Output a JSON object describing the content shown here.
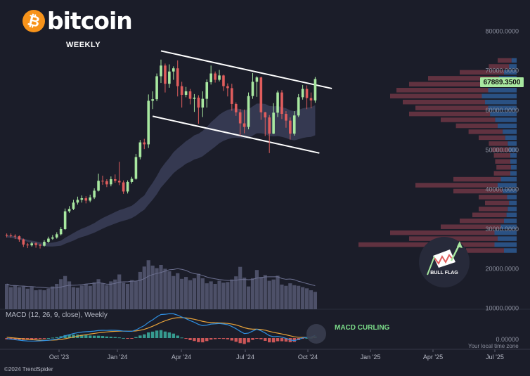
{
  "header": {
    "logo_text": "bitcoin",
    "subtitle": "WEEKLY"
  },
  "colors": {
    "background": "#1b1d29",
    "bull": "#a8e8a0",
    "bear": "#e05d5d",
    "macd_line": "#2f8fe0",
    "signal_line": "#e8a33a",
    "volume": "#5a5e78",
    "ema_band": "#3a3e58",
    "channel": "#ffffff",
    "bitcoin_orange": "#f7931a"
  },
  "icons": {
    "logo": "bitcoin-logo-icon",
    "pattern": "bull-flag-icon"
  },
  "chart_data": {
    "type": "candlestick",
    "timeframe": "weekly",
    "y_axis": {
      "labels": [
        "80000.0000",
        "70000.0000",
        "60000.0000",
        "50000.0000",
        "40000.0000",
        "30000.0000",
        "20000.0000",
        "10000.0000"
      ],
      "ylim": [
        10000,
        82000
      ]
    },
    "x_axis": {
      "labels": [
        "Oct '23",
        "Jan '24",
        "Apr '24",
        "Jul '24",
        "Oct '24",
        "Jan '25",
        "Apr '25",
        "Jul '25"
      ]
    },
    "last_price": "67889.3500",
    "candles": [
      [
        28500,
        28400,
        28900,
        27900
      ],
      [
        28400,
        28300,
        28900,
        27900
      ],
      [
        28300,
        28200,
        28700,
        27500
      ],
      [
        28200,
        27400,
        28400,
        26800
      ],
      [
        27400,
        26100,
        27600,
        25500
      ],
      [
        26100,
        25900,
        26500,
        25200
      ],
      [
        25900,
        26400,
        26800,
        25600
      ],
      [
        26400,
        26000,
        26700,
        25300
      ],
      [
        26000,
        25800,
        26300,
        25100
      ],
      [
        25800,
        26800,
        27200,
        25600
      ],
      [
        26800,
        27600,
        28100,
        26500
      ],
      [
        27600,
        27900,
        28500,
        27300
      ],
      [
        27900,
        28700,
        29200,
        27600
      ],
      [
        28700,
        30000,
        30500,
        28400
      ],
      [
        30000,
        34500,
        35200,
        29800
      ],
      [
        34500,
        35100,
        35800,
        34100
      ],
      [
        35100,
        36700,
        37400,
        34800
      ],
      [
        36700,
        37400,
        38200,
        36200
      ],
      [
        37400,
        37800,
        38500,
        36700
      ],
      [
        37800,
        37200,
        38300,
        36500
      ],
      [
        37200,
        38000,
        38700,
        36800
      ],
      [
        38000,
        39700,
        40300,
        37600
      ],
      [
        39700,
        42200,
        44000,
        39500
      ],
      [
        42200,
        42100,
        43500,
        41200
      ],
      [
        42100,
        41300,
        42600,
        40600
      ],
      [
        41300,
        42600,
        43300,
        40800
      ],
      [
        42600,
        42200,
        43800,
        41700
      ],
      [
        42200,
        41800,
        47000,
        41100
      ],
      [
        41800,
        39500,
        42300,
        38900
      ],
      [
        39500,
        41900,
        42300,
        39000
      ],
      [
        41900,
        42700,
        43200,
        41500
      ],
      [
        42700,
        48200,
        49000,
        42500
      ],
      [
        48200,
        51900,
        52500,
        47600
      ],
      [
        51900,
        51400,
        52800,
        50200
      ],
      [
        51400,
        62400,
        64000,
        50500
      ],
      [
        62400,
        62800,
        64800,
        60300
      ],
      [
        62800,
        68600,
        69300,
        62300
      ],
      [
        68600,
        71300,
        72800,
        66900
      ],
      [
        71300,
        66700,
        71800,
        64500
      ],
      [
        66700,
        69800,
        71600,
        65700
      ],
      [
        69800,
        70600,
        71100,
        67700
      ],
      [
        70600,
        66100,
        72600,
        63500
      ],
      [
        66100,
        63900,
        67200,
        60700
      ],
      [
        63900,
        64800,
        65900,
        63300
      ],
      [
        64800,
        62900,
        65400,
        61500
      ],
      [
        62900,
        63200,
        64100,
        59600
      ],
      [
        63200,
        60700,
        63800,
        56600
      ],
      [
        60700,
        62900,
        64800,
        58300
      ],
      [
        62900,
        67100,
        67800,
        60700
      ],
      [
        67100,
        69300,
        71300,
        66500
      ],
      [
        69300,
        67700,
        69800,
        67000
      ],
      [
        67700,
        68800,
        70200,
        67300
      ],
      [
        68800,
        66100,
        69000,
        64900
      ],
      [
        66100,
        65600,
        66800,
        63500
      ],
      [
        65600,
        61600,
        66700,
        59900
      ],
      [
        61600,
        59500,
        62000,
        58600
      ],
      [
        59500,
        56700,
        60300,
        53600
      ],
      [
        56700,
        55800,
        60200,
        54200
      ],
      [
        55800,
        63600,
        64500,
        55200
      ],
      [
        63600,
        67200,
        69400,
        62900
      ],
      [
        67200,
        68300,
        68600,
        63400
      ],
      [
        68300,
        59500,
        68500,
        57600
      ],
      [
        59500,
        58200,
        59600,
        53500
      ],
      [
        58200,
        54100,
        58800,
        49200
      ],
      [
        54100,
        59400,
        61800,
        54000
      ],
      [
        59400,
        64500,
        65000,
        58300
      ],
      [
        64500,
        59100,
        65100,
        57800
      ],
      [
        59100,
        57400,
        59800,
        55600
      ],
      [
        57400,
        54100,
        58200,
        52600
      ],
      [
        54100,
        58700,
        59800,
        53600
      ],
      [
        58700,
        63300,
        64100,
        58300
      ],
      [
        63300,
        65400,
        66400,
        62700
      ],
      [
        65400,
        63100,
        66300,
        60300
      ],
      [
        63100,
        62500,
        64500,
        60500
      ],
      [
        62500,
        67900,
        68400,
        61900
      ]
    ],
    "volume": [
      0.8,
      0.7,
      0.75,
      0.7,
      0.72,
      0.65,
      0.7,
      0.6,
      0.62,
      0.6,
      0.65,
      0.72,
      0.8,
      0.95,
      1.05,
      0.88,
      0.7,
      0.68,
      0.75,
      0.8,
      0.74,
      0.85,
      0.95,
      0.82,
      0.76,
      0.88,
      0.94,
      1.1,
      0.84,
      0.8,
      0.92,
      0.9,
      1.18,
      1.35,
      1.55,
      1.38,
      1.3,
      1.4,
      1.28,
      1.2,
      1.05,
      1.14,
      0.96,
      1.02,
      0.92,
      0.98,
      1.12,
      0.98,
      0.82,
      0.88,
      0.8,
      0.9,
      0.84,
      0.86,
      0.94,
      1.04,
      1.34,
      1.0,
      0.72,
      0.98,
      1.24,
      1.02,
      1.08,
      0.9,
      0.94,
      1.06,
      0.78,
      0.74,
      0.82,
      0.76,
      0.74,
      0.7,
      0.66,
      0.6,
      0.55
    ],
    "macd": [
      -100,
      -210,
      -330,
      -420,
      -520,
      -580,
      -600,
      -590,
      -560,
      -500,
      -430,
      -330,
      -200,
      80,
      440,
      670,
      890,
      1050,
      1180,
      1250,
      1300,
      1370,
      1490,
      1530,
      1520,
      1540,
      1530,
      1480,
      1380,
      1340,
      1330,
      1600,
      2050,
      2460,
      3110,
      3600,
      4180,
      4650,
      4700,
      4800,
      4790,
      4520,
      4150,
      3830,
      3450,
      3120,
      2700,
      2450,
      2550,
      2760,
      2810,
      2880,
      2780,
      2640,
      2280,
      1850,
      1330,
      880,
      980,
      1380,
      1740,
      1440,
      1000,
      480,
      260,
      340,
      180,
      -60,
      -380,
      -500,
      -260,
      30,
      150,
      180,
      550
    ],
    "signal": [
      150,
      80,
      0,
      -80,
      -160,
      -240,
      -310,
      -370,
      -410,
      -430,
      -430,
      -410,
      -370,
      -280,
      -140,
      30,
      200,
      370,
      530,
      670,
      800,
      910,
      1030,
      1130,
      1210,
      1280,
      1330,
      1360,
      1370,
      1360,
      1360,
      1410,
      1540,
      1730,
      2000,
      2330,
      2700,
      3090,
      3410,
      3690,
      3910,
      4030,
      4050,
      3980,
      3870,
      3710,
      3510,
      3300,
      3150,
      3070,
      3020,
      2990,
      2950,
      2890,
      2770,
      2590,
      2340,
      2050,
      1840,
      1750,
      1750,
      1680,
      1550,
      1330,
      1120,
      970,
      810,
      640,
      440,
      250,
      150,
      120,
      130,
      140,
      220
    ],
    "ema_band_upper": [
      28400,
      28300,
      28100,
      27900,
      27600,
      27300,
      27100,
      26900,
      26700,
      26500,
      26500,
      26600,
      26800,
      27100,
      27800,
      28400,
      29000,
      29600,
      30100,
      30500,
      31000,
      31500,
      32200,
      32800,
      33300,
      33800,
      34300,
      34800,
      35100,
      35500,
      35900,
      36700,
      37700,
      38500,
      40200,
      41700,
      43400,
      45300,
      46700,
      48000,
      49400,
      50400,
      51300,
      52200,
      52900,
      53700,
      54100,
      54800,
      55800,
      57000,
      57900,
      58900,
      59600,
      60100,
      60400,
      60500,
      60300,
      60000,
      60300,
      61000,
      61700,
      61700,
      61600,
      61100,
      61000,
      61100,
      60800,
      60500,
      60000,
      59800,
      60100,
      60500,
      60700,
      60800,
      61300
    ],
    "ema_band_lower": [
      27900,
      27800,
      27600,
      27400,
      27100,
      26800,
      26500,
      26200,
      25900,
      25700,
      25600,
      25600,
      25700,
      25800,
      26300,
      26700,
      27100,
      27600,
      28000,
      28300,
      28700,
      29100,
      29600,
      30100,
      30600,
      31000,
      31400,
      31800,
      32100,
      32400,
      32800,
      33400,
      34200,
      34900,
      36200,
      37400,
      38800,
      40500,
      41700,
      42900,
      44100,
      45000,
      45700,
      46500,
      47000,
      47600,
      47900,
      48400,
      49200,
      50000,
      50800,
      51700,
      52300,
      52700,
      53000,
      53100,
      53000,
      52800,
      53000,
      53600,
      54200,
      54200,
      54000,
      53500,
      53400,
      53500,
      53300,
      53000,
      52600,
      52400,
      52700,
      53000,
      53200,
      53300,
      53700
    ],
    "channel": {
      "upper": {
        "start_index": 37,
        "start_price": 75000,
        "end_index": 78,
        "end_price": 65500
      },
      "lower": {
        "start_index": 35,
        "start_price": 58500,
        "end_index": 75,
        "end_price": 49200
      }
    },
    "volume_profile": [
      {
        "price": 72500,
        "sell": 0.15,
        "buy": 0.08
      },
      {
        "price": 71000,
        "sell": 0.22,
        "buy": 0.12
      },
      {
        "price": 69500,
        "sell": 0.45,
        "buy": 0.2
      },
      {
        "price": 68000,
        "sell": 0.7,
        "buy": 0.28
      },
      {
        "price": 66500,
        "sell": 0.85,
        "buy": 0.4
      },
      {
        "price": 65000,
        "sell": 0.95,
        "buy": 0.45
      },
      {
        "price": 63500,
        "sell": 1.0,
        "buy": 0.55
      },
      {
        "price": 62000,
        "sell": 0.9,
        "buy": 0.5
      },
      {
        "price": 60500,
        "sell": 0.8,
        "buy": 0.45
      },
      {
        "price": 59000,
        "sell": 0.85,
        "buy": 0.42
      },
      {
        "price": 57500,
        "sell": 0.6,
        "buy": 0.34
      },
      {
        "price": 56000,
        "sell": 0.48,
        "buy": 0.3
      },
      {
        "price": 54500,
        "sell": 0.38,
        "buy": 0.22
      },
      {
        "price": 53000,
        "sell": 0.3,
        "buy": 0.18
      },
      {
        "price": 51500,
        "sell": 0.22,
        "buy": 0.14
      },
      {
        "price": 50000,
        "sell": 0.2,
        "buy": 0.12
      },
      {
        "price": 48500,
        "sell": 0.18,
        "buy": 0.1
      },
      {
        "price": 47000,
        "sell": 0.17,
        "buy": 0.1
      },
      {
        "price": 45500,
        "sell": 0.16,
        "buy": 0.09
      },
      {
        "price": 44000,
        "sell": 0.18,
        "buy": 0.1
      },
      {
        "price": 42500,
        "sell": 0.5,
        "buy": 0.25
      },
      {
        "price": 41000,
        "sell": 0.8,
        "buy": 0.3
      },
      {
        "price": 39500,
        "sell": 0.5,
        "buy": 0.22
      },
      {
        "price": 38000,
        "sell": 0.3,
        "buy": 0.15
      },
      {
        "price": 36500,
        "sell": 0.25,
        "buy": 0.12
      },
      {
        "price": 35000,
        "sell": 0.3,
        "buy": 0.14
      },
      {
        "price": 33500,
        "sell": 0.35,
        "buy": 0.16
      },
      {
        "price": 32000,
        "sell": 0.45,
        "buy": 0.2
      },
      {
        "price": 30500,
        "sell": 0.6,
        "buy": 0.25
      },
      {
        "price": 29000,
        "sell": 1.0,
        "buy": 0.35
      },
      {
        "price": 27500,
        "sell": 0.85,
        "buy": 0.3
      },
      {
        "price": 26000,
        "sell": 1.25,
        "buy": 0.35
      },
      {
        "price": 24500,
        "sell": 0.4,
        "buy": 0.2
      }
    ]
  },
  "indicator": {
    "macd_title": "MACD (12, 26, 9, close), Weekly",
    "macd_annotation": "MACD CURLING"
  },
  "pattern": {
    "label": "BULL FLAG"
  },
  "footer": {
    "local_time": "Your local time zone",
    "copyright": "©2024 TrendSpider"
  }
}
